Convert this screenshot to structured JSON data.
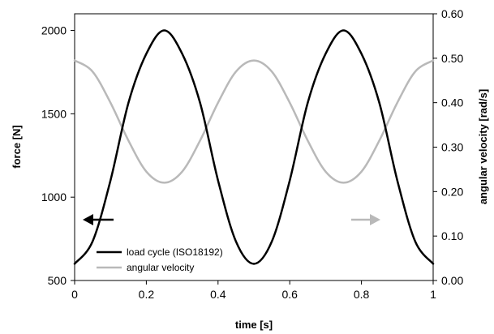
{
  "chart_data": {
    "type": "line",
    "xlabel": "time [s]",
    "ylabel_left": "force [N]",
    "ylabel_right": "angular velocity [rad/s]",
    "xlim": [
      0,
      1
    ],
    "ylim_left": [
      500,
      2100
    ],
    "ylim_right": [
      0.0,
      0.6
    ],
    "x_ticks": [
      "0",
      "0.2",
      "0.4",
      "0.6",
      "0.8",
      "1"
    ],
    "y_left_ticks": [
      "500",
      "1000",
      "1500",
      "2000"
    ],
    "y_right_ticks": [
      "0.00",
      "0.10",
      "0.20",
      "0.30",
      "0.40",
      "0.50",
      "0.60"
    ],
    "grid": false,
    "legend_position": "bottom-left",
    "series": [
      {
        "name": "load cycle (ISO18192)",
        "axis": "left",
        "color": "#000000",
        "x": [
          0,
          0.05,
          0.1,
          0.15,
          0.2,
          0.25,
          0.3,
          0.35,
          0.4,
          0.45,
          0.5,
          0.55,
          0.6,
          0.65,
          0.7,
          0.75,
          0.8,
          0.85,
          0.9,
          0.95,
          1.0
        ],
        "values": [
          600,
          734,
          1100,
          1565,
          1860,
          2000,
          1860,
          1565,
          1100,
          734,
          600,
          734,
          1100,
          1565,
          1860,
          2000,
          1860,
          1565,
          1100,
          734,
          600
        ]
      },
      {
        "name": "angular velocity",
        "axis": "right",
        "color": "#b9b9b9",
        "x": [
          0,
          0.05,
          0.1,
          0.15,
          0.2,
          0.25,
          0.3,
          0.35,
          0.4,
          0.45,
          0.5,
          0.55,
          0.6,
          0.65,
          0.7,
          0.75,
          0.8,
          0.85,
          0.9,
          0.95,
          1.0
        ],
        "values": [
          0.495,
          0.47,
          0.4,
          0.315,
          0.245,
          0.22,
          0.245,
          0.315,
          0.4,
          0.47,
          0.495,
          0.47,
          0.4,
          0.315,
          0.245,
          0.22,
          0.245,
          0.315,
          0.4,
          0.47,
          0.495
        ]
      }
    ]
  },
  "arrows": {
    "left_color": "#000000",
    "right_color": "#b9b9b9"
  }
}
